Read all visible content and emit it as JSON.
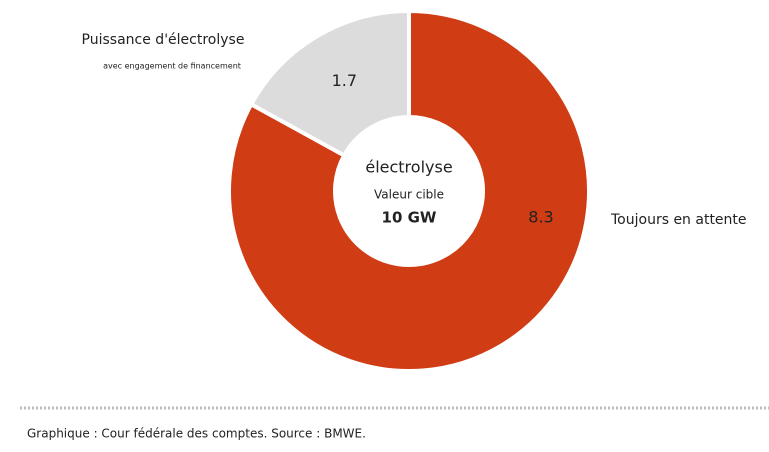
{
  "chart_data": {
    "type": "donut",
    "categories": [
      "Toujours en attente",
      "Puissance d'électrolyse"
    ],
    "values": [
      8.3,
      1.7
    ],
    "colors": [
      "#d03c13",
      "#dcdcdc"
    ],
    "note": "avec engagement de financement",
    "center_title": "électrolyse",
    "center_subtitle": "Valeur cible",
    "center_value": "10 GW"
  },
  "footer": "Graphique : Cour fédérale des comptes. Source : BMWE."
}
